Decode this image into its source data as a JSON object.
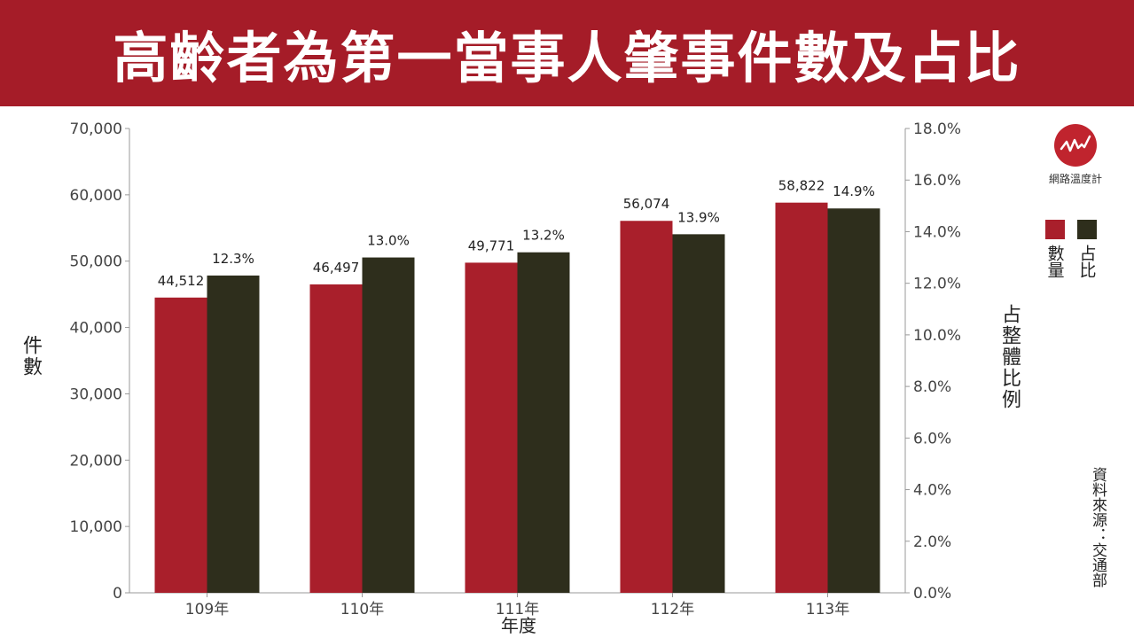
{
  "title": "高齡者為第一當事人肇事件數及占比",
  "source": "資料來源：交通部",
  "logo": {
    "text": "網路溫度計",
    "icon": "trend-line-icon"
  },
  "colors": {
    "banner": "#a51c28",
    "count": "#a91f2b",
    "share": "#2e2e1c"
  },
  "chart_data": {
    "type": "bar",
    "title": "高齡者為第一當事人肇事件數及占比",
    "categories": [
      "109年",
      "110年",
      "111年",
      "112年",
      "113年"
    ],
    "xlabel": "年度",
    "ylabel": "件數",
    "y2label": "占整體比例",
    "ylim": [
      0,
      70000
    ],
    "y2lim": [
      0,
      18
    ],
    "yticks": [
      "0",
      "10,000",
      "20,000",
      "30,000",
      "40,000",
      "50,000",
      "60,000",
      "70,000"
    ],
    "y2ticks": [
      "0.0%",
      "2.0%",
      "4.0%",
      "6.0%",
      "8.0%",
      "10.0%",
      "12.0%",
      "14.0%",
      "16.0%",
      "18.0%"
    ],
    "grid": false,
    "legend_position": "right",
    "series": [
      {
        "name": "數量",
        "axis": "left",
        "values": [
          44512,
          46497,
          49771,
          56074,
          58822
        ],
        "labels": [
          "44,512",
          "46,497",
          "49,771",
          "56,074",
          "58,822"
        ]
      },
      {
        "name": "占比",
        "axis": "right",
        "values": [
          12.3,
          13.0,
          13.2,
          13.9,
          14.9
        ],
        "labels": [
          "12.3%",
          "13.0%",
          "13.2%",
          "13.9%",
          "14.9%"
        ]
      }
    ]
  }
}
